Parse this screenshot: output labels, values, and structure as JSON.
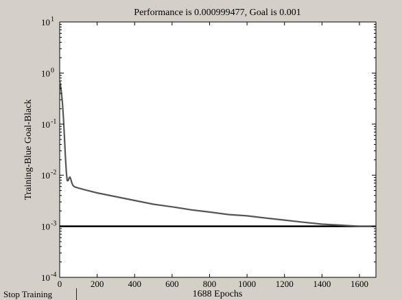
{
  "stop_button": {
    "label": "Stop Training"
  },
  "chart_data": {
    "type": "line",
    "title": "Performance is 0.000999477, Goal is 0.001",
    "xlabel": "1688 Epochs",
    "ylabel": "Training-Blue  Goal-Black",
    "yscale": "log",
    "xlim": [
      0,
      1688
    ],
    "ylim": [
      0.0001,
      10
    ],
    "grid": false,
    "x_ticks": [
      0,
      200,
      400,
      600,
      800,
      1000,
      1200,
      1400,
      1600
    ],
    "y_ticks": [
      {
        "base": "10",
        "exp": "-4",
        "value": 0.0001
      },
      {
        "base": "10",
        "exp": "-3",
        "value": 0.001
      },
      {
        "base": "10",
        "exp": "-2",
        "value": 0.01
      },
      {
        "base": "10",
        "exp": "-1",
        "value": 0.1
      },
      {
        "base": "10",
        "exp": "0",
        "value": 1
      },
      {
        "base": "10",
        "exp": "1",
        "value": 10
      }
    ],
    "series": [
      {
        "role": "training",
        "color": "#555555",
        "x": [
          0,
          5,
          10,
          15,
          20,
          25,
          30,
          35,
          40,
          45,
          50,
          55,
          60,
          65,
          70,
          75,
          80,
          100,
          150,
          200,
          300,
          400,
          500,
          600,
          700,
          800,
          900,
          1000,
          1100,
          1200,
          1300,
          1400,
          1500,
          1600,
          1688
        ],
        "y": [
          0.7,
          0.55,
          0.4,
          0.25,
          0.13,
          0.06,
          0.025,
          0.012,
          0.0078,
          0.0078,
          0.0088,
          0.0092,
          0.0082,
          0.007,
          0.0064,
          0.0061,
          0.0059,
          0.0056,
          0.005,
          0.0045,
          0.0038,
          0.0032,
          0.0027,
          0.0024,
          0.0021,
          0.0019,
          0.0017,
          0.0016,
          0.00145,
          0.00132,
          0.0012,
          0.0011,
          0.00105,
          0.001,
          0.000999477
        ]
      },
      {
        "role": "goal",
        "color": "#000000",
        "x": [
          0,
          1688
        ],
        "y": [
          0.001,
          0.001
        ]
      }
    ]
  }
}
